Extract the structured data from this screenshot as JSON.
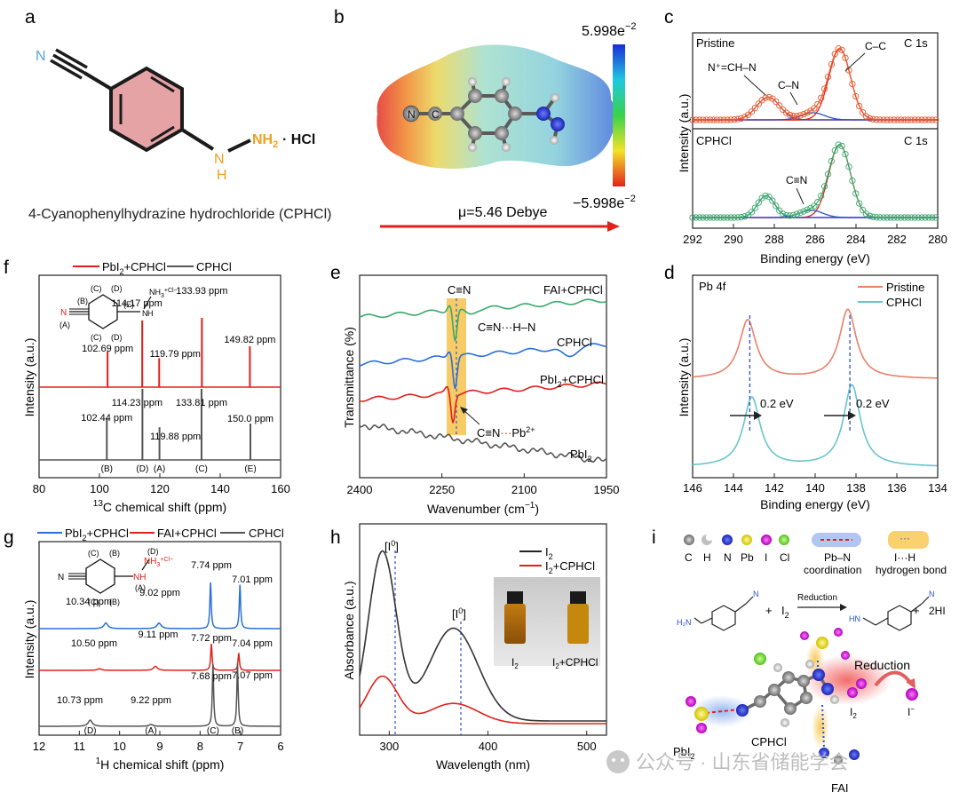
{
  "panels": {
    "a": {
      "letter": "a",
      "atom_n": "N",
      "atom_nh": "N",
      "atom_h": "H",
      "nh2": "NH",
      "nh2_sub": "2",
      "salt": "· HCl",
      "caption": "4-Cyanophenylhydrazine hydrochloride (CPHCl)"
    },
    "b": {
      "letter": "b",
      "scale_max": "5.998e",
      "scale_max_exp": "−2",
      "scale_min": "−5.998e",
      "scale_min_exp": "−2",
      "dipole": "μ=5.46 Debye",
      "atoms": {
        "n": "N",
        "c": "C",
        "h": "H"
      }
    },
    "c": {
      "letter": "c",
      "top_label": "Pristine",
      "bottom_label": "CPHCl",
      "orbital": "C 1s",
      "ylabel": "Intensity (a.u.)",
      "xlabel": "Binding energy (eV)",
      "xticks": [
        "292",
        "290",
        "288",
        "286",
        "284",
        "282",
        "280"
      ],
      "ann_ncn": "N⁺=CH–N",
      "ann_cn": "C–N",
      "ann_cc": "C–C",
      "ann_cnt": "C≡N"
    },
    "d": {
      "letter": "d",
      "orbital": "Pb 4f",
      "legend": [
        "Pristine",
        "CPHCl"
      ],
      "shift1": "0.2 eV",
      "shift2": "0.2 eV",
      "ylabel": "Intensity (a.u.)",
      "xlabel": "Binding energy (eV)",
      "xticks": [
        "146",
        "144",
        "142",
        "140",
        "138",
        "136",
        "134"
      ]
    },
    "e": {
      "letter": "e",
      "cn": "C≡N",
      "s1": "FAI+CPHCl",
      "s2": "CPHCl",
      "s3_pre": "PbI",
      "s3_sub": "2",
      "s3_post": "+CPHCl",
      "s4_pre": "PbI",
      "s4_sub": "2",
      "hbond": "C≡N···H–N",
      "pbcoord_pre": "C≡N",
      "pbcoord_dots": "···",
      "pbcoord_pb": "Pb",
      "pbcoord_sup": "2+",
      "ylabel": "Transmittance (%)",
      "xlabel_pre": "Wavenumber (cm",
      "xlabel_sup": "−1",
      "xlabel_post": ")",
      "xticks": [
        "2400",
        "2250",
        "2100",
        "1950"
      ]
    },
    "f": {
      "letter": "f",
      "legend_a_pre": "PbI",
      "legend_a_sub": "2",
      "legend_a_post": "+CPHCl",
      "legend_b": "CPHCl",
      "peaks_top": [
        "102.69 ppm",
        "114.17 ppm",
        "119.79 ppm",
        "133.93 ppm",
        "149.82 ppm"
      ],
      "peaks_bottom": [
        "102.44 ppm",
        "114.23 ppm",
        "119.88 ppm",
        "133.81 ppm",
        "150.0 ppm"
      ],
      "assign": [
        "(B)",
        "(D)",
        "(A)",
        "(C)",
        "(E)"
      ],
      "mol_labels": {
        "c": "(C)",
        "d": "(D)",
        "b": "(B)",
        "e": "(E)",
        "a": "(A)",
        "nh3": "NH",
        "nh3_sub": "3",
        "nh3_sup": "+Cl",
        "nh3_sup2": "−",
        "n": "N",
        "h": "H"
      },
      "ylabel": "Intensity (a.u.)",
      "xlabel_sup": "13",
      "xlabel": "C chemical shift (ppm)",
      "xticks": [
        "80",
        "100",
        "120",
        "140",
        "160"
      ]
    },
    "g": {
      "letter": "g",
      "legend_a_pre": "PbI",
      "legend_a_sub": "2",
      "legend_a_post": "+CPHCl",
      "legend_b": "FAI+CPHCl",
      "legend_c": "CPHCl",
      "peaks_blue": [
        "10.34 ppm",
        "9.02 ppm",
        "7.74 ppm",
        "7.01 ppm"
      ],
      "peaks_red": [
        "10.50 ppm",
        "9.11 ppm",
        "7.72 ppm",
        "7.04 ppm"
      ],
      "peaks_black": [
        "10.73 ppm",
        "9.22 ppm",
        "7.68 ppm",
        "7.07 ppm"
      ],
      "assign": [
        "(D)",
        "(A)",
        "(C)",
        "(B)"
      ],
      "mol_labels": {
        "c": "(C)",
        "b": "(B)",
        "d": "(D)",
        "a": "(A)",
        "nh3": "NH",
        "nh3_sub": "3",
        "nh3_sup": "+Cl",
        "nh3_sup2": "−",
        "nh": "NH",
        "n": "N"
      },
      "ylabel": "Intensity (a.u.)",
      "xlabel_sup": "1",
      "xlabel": "H chemical shift (ppm)",
      "xticks": [
        "12",
        "11",
        "10",
        "9",
        "8",
        "7",
        "6"
      ]
    },
    "h": {
      "letter": "h",
      "legend_a_pre": "I",
      "legend_a_sub": "2",
      "legend_b_pre": "I",
      "legend_b_sub": "2",
      "legend_b_post": "+CPHCl",
      "peak_label_pre": "[I",
      "peak_label_sup": "0",
      "peak_label_post": "]",
      "vial1_pre": "I",
      "vial1_sub": "2",
      "vial2_pre": "I",
      "vial2_sub": "2",
      "vial2_post": "+CPHCl",
      "ylabel": "Absorbance (a.u.)",
      "xlabel": "Wavelength (nm)",
      "xticks": [
        "300",
        "400",
        "500"
      ]
    },
    "i": {
      "letter": "i",
      "atoms": [
        "C",
        "H",
        "N",
        "Pb",
        "I",
        "Cl"
      ],
      "pbn_a": "Pb–N",
      "pbn_b": "coordination",
      "ih_a": "I···H",
      "ih_b": "hydrogen bond",
      "plus1": "+",
      "i2_pre": "I",
      "i2_sub": "2",
      "reduction_small": "Reduction",
      "plus2": "+",
      "hi": "2HI",
      "reduction": "Reduction",
      "i2b_pre": "I",
      "i2b_sub": "2",
      "iminus_pre": "I",
      "iminus_sup": "−",
      "pbi2_pre": "PbI",
      "pbi2_sub": "2",
      "cphcl": "CPHCl",
      "fai": "FAI"
    },
    "watermark": "公众号 · 山东省储能学会"
  },
  "colors": {
    "red": "#e0201b",
    "blue": "#2a6fd6",
    "green": "#3aa86b",
    "orange": "#e8582a",
    "teal": "#4cb5a3",
    "cyan": "#69c4cc",
    "gray": "#555555",
    "pink": "#e39aa0",
    "gold": "#f5c542"
  },
  "chart_data": [
    {
      "panel": "c",
      "type": "line",
      "title": "",
      "xlabel": "Binding energy (eV)",
      "ylabel": "Intensity (a.u.)",
      "xlim": [
        292,
        280
      ],
      "series": [
        {
          "name": "Pristine",
          "peaks": [
            {
              "x": 284.8,
              "h": 1.0,
              "w": 0.75
            },
            {
              "x": 286.1,
              "h": 0.1,
              "w": 0.8
            },
            {
              "x": 288.3,
              "h": 0.32,
              "w": 0.8
            }
          ]
        },
        {
          "name": "CPHCl",
          "peaks": [
            {
              "x": 284.8,
              "h": 1.0,
              "w": 0.75
            },
            {
              "x": 286.2,
              "h": 0.1,
              "w": 0.8
            },
            {
              "x": 288.4,
              "h": 0.3,
              "w": 0.6
            }
          ]
        }
      ]
    },
    {
      "panel": "d",
      "type": "line",
      "title": "",
      "xlabel": "Binding energy (eV)",
      "ylabel": "Intensity (a.u.)",
      "xlim": [
        146,
        134
      ],
      "series": [
        {
          "name": "Pristine",
          "peaks": [
            {
              "x": 143.3,
              "h": 0.85,
              "w": 0.5
            },
            {
              "x": 138.4,
              "h": 1.0,
              "w": 0.5
            }
          ]
        },
        {
          "name": "CPHCl",
          "peaks": [
            {
              "x": 143.1,
              "h": 0.85,
              "w": 0.5
            },
            {
              "x": 138.2,
              "h": 1.0,
              "w": 0.5
            }
          ]
        }
      ]
    },
    {
      "panel": "e",
      "type": "line",
      "title": "",
      "xlabel": "Wavenumber (cm−1)",
      "ylabel": "Transmittance (%)",
      "xlim": [
        2400,
        1950
      ],
      "series": [
        {
          "name": "FAI+CPHCl",
          "dip_x": 2226,
          "dip_depth": 0.55
        },
        {
          "name": "CPHCl",
          "dip_x": 2226,
          "dip_depth": 0.55
        },
        {
          "name": "PbI2+CPHCl",
          "dip_x": 2230,
          "dip_depth": 0.5
        },
        {
          "name": "PbI2",
          "dip_x": null,
          "dip_depth": 0
        }
      ]
    },
    {
      "panel": "f",
      "type": "line",
      "title": "",
      "xlabel": "13C chemical shift (ppm)",
      "ylabel": "Intensity (a.u.)",
      "xlim": [
        80,
        160
      ],
      "series": [
        {
          "name": "PbI2+CPHCl",
          "x": [
            102.69,
            114.17,
            119.79,
            133.93,
            149.82
          ],
          "h": [
            0.35,
            0.95,
            0.22,
            1.0,
            0.45
          ]
        },
        {
          "name": "CPHCl",
          "x": [
            102.44,
            114.23,
            119.88,
            133.81,
            150.0
          ],
          "h": [
            0.45,
            1.0,
            0.28,
            1.0,
            0.35
          ]
        }
      ]
    },
    {
      "panel": "g",
      "type": "line",
      "title": "",
      "xlabel": "1H chemical shift (ppm)",
      "ylabel": "Intensity (a.u.)",
      "xlim": [
        12,
        6
      ],
      "series": [
        {
          "name": "PbI2+CPHCl",
          "x": [
            10.34,
            9.02,
            7.74,
            7.01
          ],
          "h": [
            0.12,
            0.12,
            1.0,
            0.95
          ]
        },
        {
          "name": "FAI+CPHCl",
          "x": [
            10.5,
            9.11,
            7.72,
            7.04
          ],
          "h": [
            0.06,
            0.15,
            1.0,
            0.65
          ]
        },
        {
          "name": "CPHCl",
          "x": [
            10.73,
            9.22,
            7.68,
            7.07
          ],
          "h": [
            0.1,
            0.03,
            1.0,
            1.0
          ]
        }
      ]
    },
    {
      "panel": "h",
      "type": "line",
      "title": "",
      "xlabel": "Wavelength (nm)",
      "ylabel": "Absorbance (a.u.)",
      "xlim": [
        270,
        520
      ],
      "series": [
        {
          "name": "I2",
          "peaks": [
            {
              "x": 293,
              "h": 1.0,
              "w": 20
            },
            {
              "x": 365,
              "h": 0.55,
              "w": 35
            }
          ],
          "base": 0.0
        },
        {
          "name": "I2+CPHCl",
          "peaks": [
            {
              "x": 293,
              "h": 0.28,
              "w": 22
            },
            {
              "x": 365,
              "h": 0.12,
              "w": 35
            }
          ],
          "base": 0.0
        }
      ]
    }
  ]
}
